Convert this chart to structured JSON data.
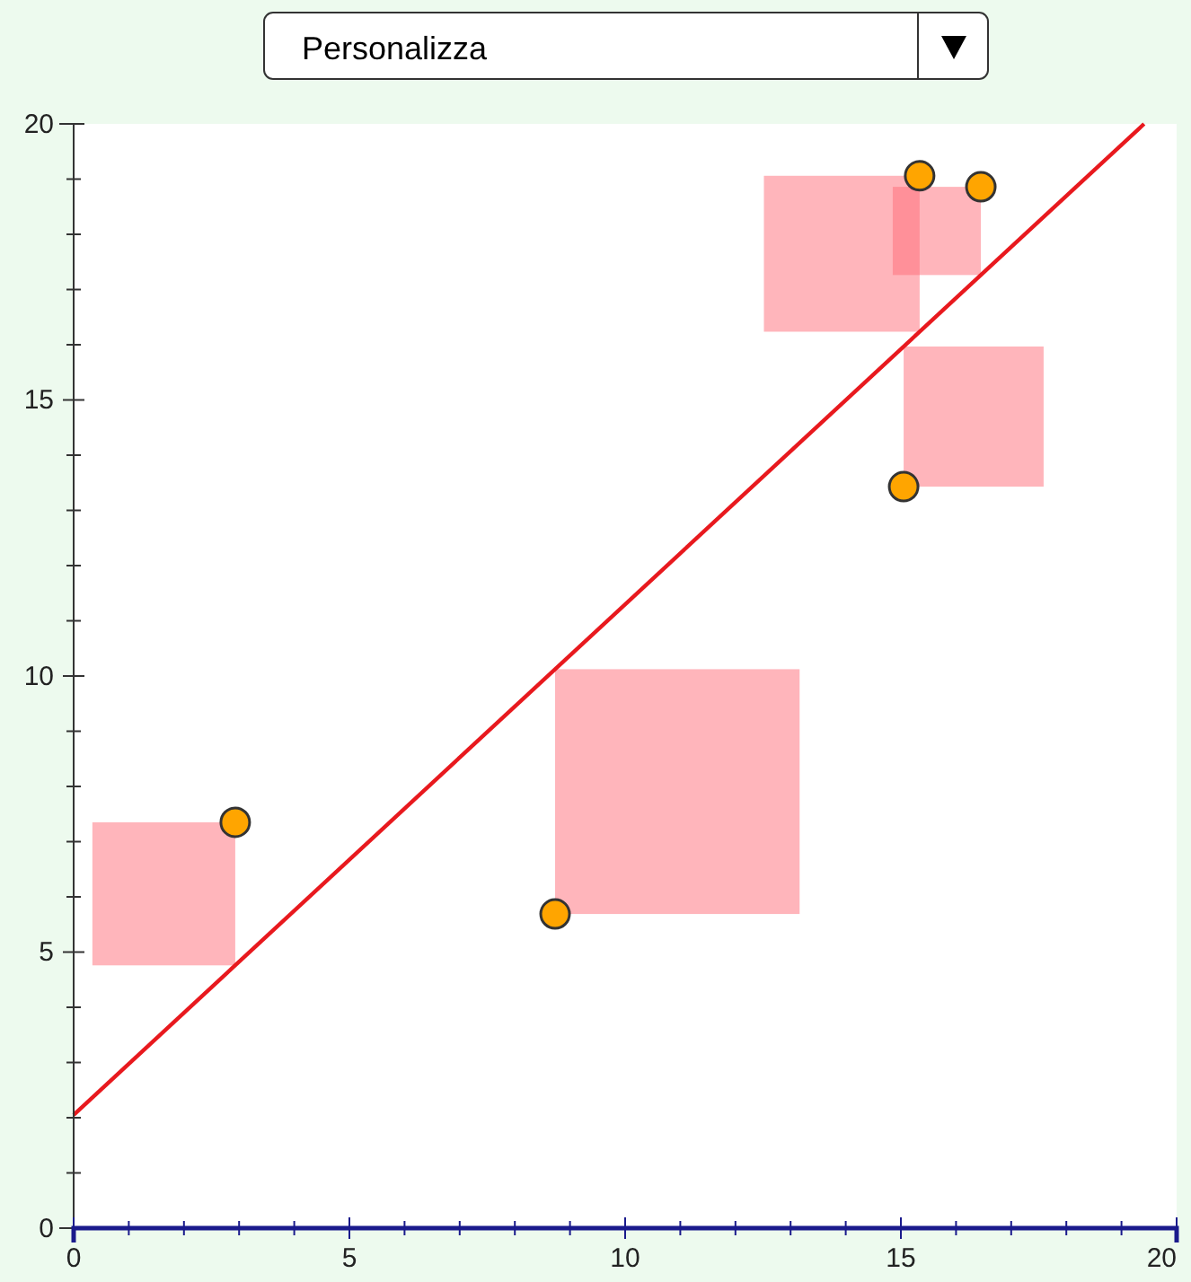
{
  "chart_data": {
    "type": "scatter",
    "annotations": [
      "Personalizza"
    ],
    "series": [
      {
        "color": "#ffa500",
        "x": [
          2.93,
          8.73,
          15.05,
          15.34,
          16.45
        ],
        "values": [
          7.35,
          5.69,
          13.43,
          19.06,
          18.86
        ],
        "marker": "circle"
      },
      {
        "type": "line",
        "color": "#e8191e",
        "x": [
          0,
          19.41
        ],
        "values": [
          2.05,
          20
        ]
      }
    ],
    "xlim": [
      0,
      20
    ],
    "ylim": [
      0,
      20
    ],
    "xticks": [
      0,
      {
        "value": 1,
        "label": null
      },
      {
        "value": 2,
        "label": null
      },
      {
        "value": 3,
        "label": null
      },
      {
        "value": 4,
        "label": null
      },
      5,
      {
        "value": 6,
        "label": null
      },
      {
        "value": 7,
        "label": null
      },
      {
        "value": 8,
        "label": null
      },
      {
        "value": 9,
        "label": null
      },
      10,
      {
        "value": 11,
        "label": null
      },
      {
        "value": 12,
        "label": null
      },
      {
        "value": 13,
        "label": null
      },
      {
        "value": 14,
        "label": null
      },
      15,
      {
        "value": 16,
        "label": null
      },
      {
        "value": 17,
        "label": null
      },
      {
        "value": 18,
        "label": null
      },
      {
        "value": 19,
        "label": null
      },
      20
    ],
    "yticks": [
      0,
      {
        "value": 1,
        "label": null
      },
      {
        "value": 2,
        "label": null
      },
      {
        "value": 3,
        "label": null
      },
      {
        "value": 4,
        "label": null
      },
      5,
      {
        "value": 6,
        "label": null
      },
      {
        "value": 7,
        "label": null
      },
      {
        "value": 8,
        "label": null
      },
      {
        "value": 9,
        "label": null
      },
      10,
      {
        "value": 11,
        "label": null
      },
      {
        "value": 12,
        "label": null
      },
      {
        "value": 13,
        "label": null
      },
      {
        "value": 14,
        "label": null
      },
      15,
      {
        "value": 16,
        "label": null
      },
      {
        "value": 17,
        "label": null
      },
      {
        "value": 18,
        "label": null
      },
      {
        "value": 19,
        "label": null
      },
      20
    ],
    "grid": false
  }
}
